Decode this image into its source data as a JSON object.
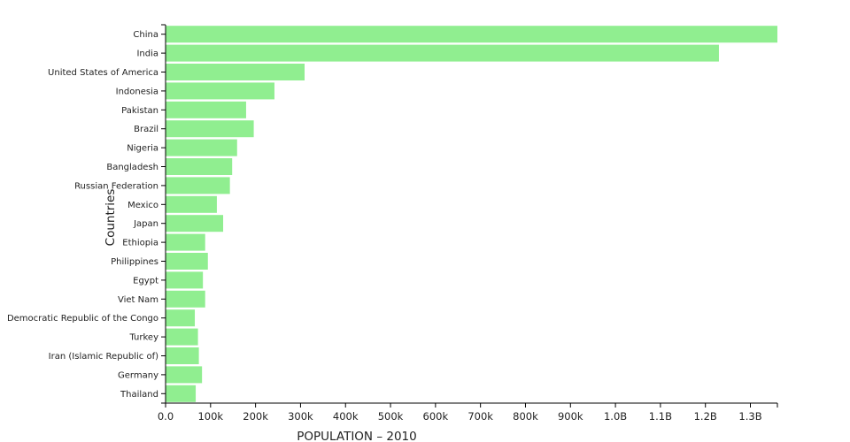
{
  "chart_data": {
    "type": "bar",
    "orientation": "horizontal",
    "xlabel": "POPULATION – 2010",
    "ylabel": "Countries",
    "xlim": [
      0,
      1360000000
    ],
    "bar_color": "#90ee90",
    "x_ticks": [
      {
        "value": 0,
        "label": "0.0"
      },
      {
        "value": 100000000,
        "label": "100k"
      },
      {
        "value": 200000000,
        "label": "200k"
      },
      {
        "value": 300000000,
        "label": "300k"
      },
      {
        "value": 400000000,
        "label": "400k"
      },
      {
        "value": 500000000,
        "label": "500k"
      },
      {
        "value": 600000000,
        "label": "600k"
      },
      {
        "value": 700000000,
        "label": "700k"
      },
      {
        "value": 800000000,
        "label": "800k"
      },
      {
        "value": 900000000,
        "label": "900k"
      },
      {
        "value": 1000000000,
        "label": "1.0B"
      },
      {
        "value": 1100000000,
        "label": "1.1B"
      },
      {
        "value": 1200000000,
        "label": "1.2B"
      },
      {
        "value": 1300000000,
        "label": "1.3B"
      }
    ],
    "categories": [
      "China",
      "India",
      "United States of America",
      "Indonesia",
      "Pakistan",
      "Brazil",
      "Nigeria",
      "Bangladesh",
      "Russian Federation",
      "Mexico",
      "Japan",
      "Ethiopia",
      "Philippines",
      "Egypt",
      "Viet Nam",
      "Democratic Republic of the Congo",
      "Turkey",
      "Iran (Islamic Republic of)",
      "Germany",
      "Thailand"
    ],
    "values": [
      1360000000,
      1230000000,
      309000000,
      242000000,
      179000000,
      196000000,
      159000000,
      148000000,
      143000000,
      114000000,
      128000000,
      88000000,
      94000000,
      83000000,
      88000000,
      65000000,
      72000000,
      74000000,
      81000000,
      67000000
    ]
  }
}
